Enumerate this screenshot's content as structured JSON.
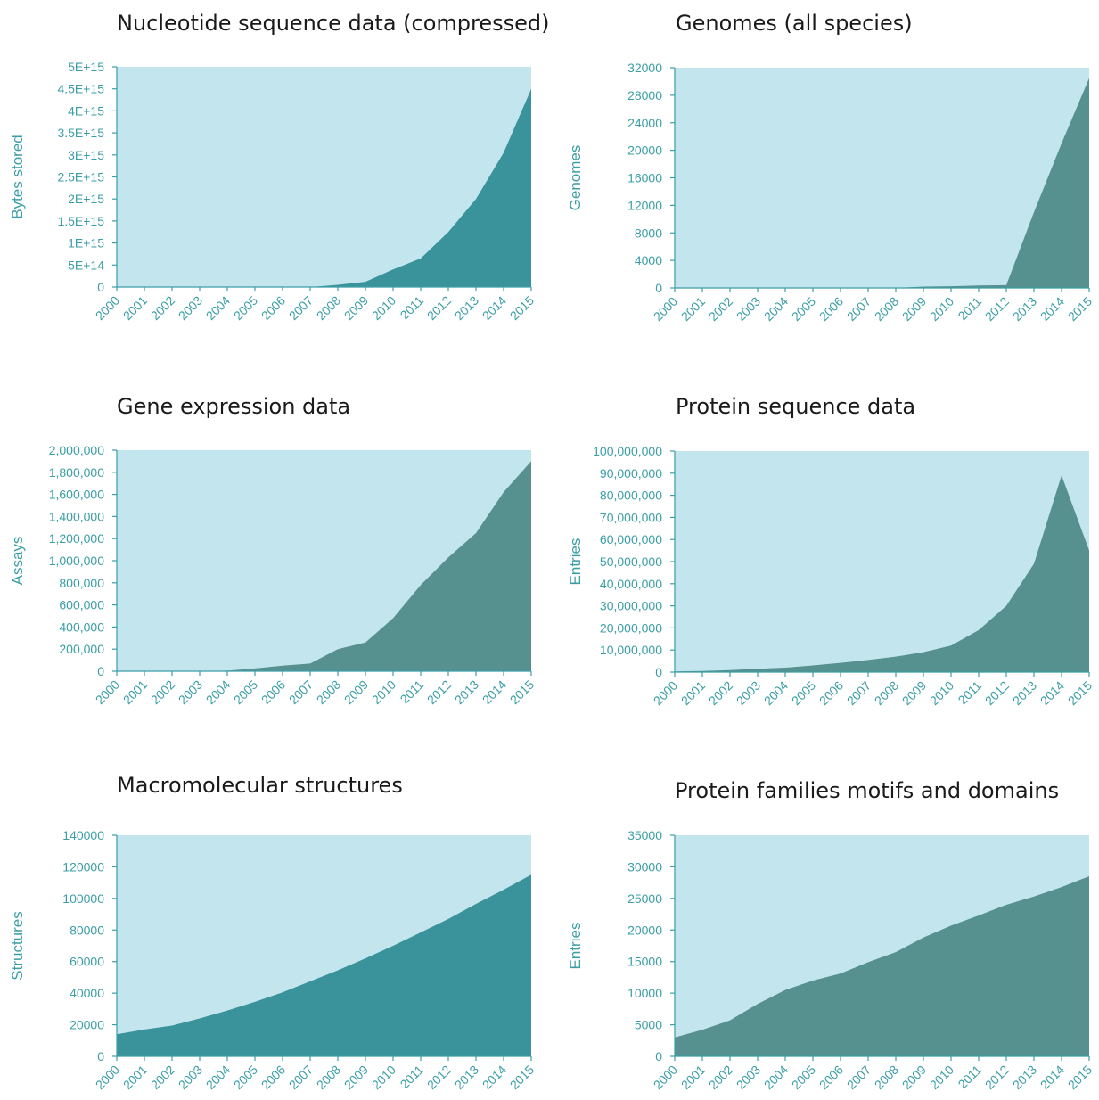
{
  "colors": {
    "background_fill": "#c3e5ee",
    "teal_area": "#3a929b",
    "slate_area": "#56908f",
    "axis_text": "#3b9ea6"
  },
  "chart_data": [
    {
      "id": "nucleotide",
      "type": "area",
      "title": "Nucleotide sequence data (compressed)",
      "xlabel": "",
      "ylabel": "Bytes stored",
      "fill_color": "#3a929b",
      "categories": [
        "2000",
        "2001",
        "2002",
        "2003",
        "2004",
        "2005",
        "2006",
        "2007",
        "2008",
        "2009",
        "2010",
        "2011",
        "2012",
        "2013",
        "2014",
        "2015"
      ],
      "values": [
        0,
        0,
        0,
        0,
        0,
        0,
        0,
        0,
        50000000000000.0,
        120000000000000.0,
        400000000000000.0,
        650000000000000.0,
        1250000000000000.0,
        2000000000000000.0,
        3050000000000000.0,
        4500000000000000.0
      ],
      "ylim": [
        0,
        5000000000000000.0
      ],
      "yticks": [
        "0",
        "5E+14",
        "1E+15",
        "1.5E+15",
        "2E+15",
        "2.5E+15",
        "3E+15",
        "3.5E+15",
        "4E+15",
        "4.5E+15",
        "5E+15"
      ]
    },
    {
      "id": "genomes",
      "type": "area",
      "title": "Genomes (all species)",
      "xlabel": "",
      "ylabel": "Genomes",
      "fill_color": "#56908f",
      "categories": [
        "2000",
        "2001",
        "2002",
        "2003",
        "2004",
        "2005",
        "2006",
        "2007",
        "2008",
        "2009",
        "2010",
        "2011",
        "2012",
        "2013",
        "2014",
        "2015"
      ],
      "values": [
        0,
        0,
        0,
        0,
        0,
        0,
        0,
        0,
        0,
        200,
        250,
        350,
        400,
        11000,
        21000,
        30500
      ],
      "ylim": [
        0,
        32000
      ],
      "yticks": [
        "0",
        "4000",
        "8000",
        "12000",
        "16000",
        "20000",
        "24000",
        "28000",
        "32000"
      ]
    },
    {
      "id": "gene-expression",
      "type": "area",
      "title": "Gene expression data",
      "xlabel": "",
      "ylabel": "Assays",
      "fill_color": "#56908f",
      "categories": [
        "2000",
        "2001",
        "2002",
        "2003",
        "2004",
        "2005",
        "2006",
        "2007",
        "2008",
        "2009",
        "2010",
        "2011",
        "2012",
        "2013",
        "2014",
        "2015"
      ],
      "values": [
        0,
        0,
        0,
        0,
        5000,
        25000,
        50000,
        70000,
        200000,
        260000,
        480000,
        780000,
        1030000,
        1250000,
        1620000,
        1900000
      ],
      "ylim": [
        0,
        2000000
      ],
      "yticks": [
        "0",
        "200,000",
        "400,000",
        "600,000",
        "800,000",
        "1,000,000",
        "1,200,000",
        "1,400,000",
        "1,600,000",
        "1,800,000",
        "2,000,000"
      ]
    },
    {
      "id": "protein-sequence",
      "type": "area",
      "title": "Protein sequence data",
      "xlabel": "",
      "ylabel": "Entries",
      "fill_color": "#56908f",
      "categories": [
        "2000",
        "2001",
        "2002",
        "2003",
        "2004",
        "2005",
        "2006",
        "2007",
        "2008",
        "2009",
        "2010",
        "2011",
        "2012",
        "2013",
        "2014",
        "2015"
      ],
      "values": [
        300000,
        500000,
        900000,
        1500000,
        2000000,
        3000000,
        4200000,
        5500000,
        7000000,
        9000000,
        12000000,
        19000000,
        30000000,
        49000000,
        89000000,
        55000000
      ],
      "ylim": [
        0,
        100000000
      ],
      "yticks": [
        "0",
        "10,000,000",
        "20,000,000",
        "30,000,000",
        "40,000,000",
        "50,000,000",
        "60,000,000",
        "70,000,000",
        "80,000,000",
        "90,000,000",
        "100,000,000"
      ]
    },
    {
      "id": "macromolecular",
      "type": "area",
      "title": "Macromolecular structures",
      "xlabel": "",
      "ylabel": "Structures",
      "fill_color": "#3a929b",
      "categories": [
        "2000",
        "2001",
        "2002",
        "2003",
        "2004",
        "2005",
        "2006",
        "2007",
        "2008",
        "2009",
        "2010",
        "2011",
        "2012",
        "2013",
        "2014",
        "2015"
      ],
      "values": [
        14000,
        17000,
        19500,
        24000,
        29000,
        34500,
        40500,
        47500,
        54500,
        62000,
        70000,
        78500,
        87000,
        96500,
        105500,
        115000
      ],
      "ylim": [
        0,
        140000
      ],
      "yticks": [
        "0",
        "20000",
        "40000",
        "60000",
        "80000",
        "100000",
        "120000",
        "140000"
      ]
    },
    {
      "id": "protein-families",
      "type": "area",
      "title": "Protein families motifs and domains",
      "xlabel": "",
      "ylabel": "Entries",
      "fill_color": "#56908f",
      "categories": [
        "2000",
        "2001",
        "2002",
        "2003",
        "2004",
        "2005",
        "2006",
        "2007",
        "2008",
        "2009",
        "2010",
        "2011",
        "2012",
        "2013",
        "2014",
        "2015"
      ],
      "values": [
        3000,
        4200,
        5700,
        8300,
        10500,
        12000,
        13100,
        14900,
        16500,
        18800,
        20700,
        22300,
        24000,
        25300,
        26800,
        28500
      ],
      "ylim": [
        0,
        35000
      ],
      "yticks": [
        "0",
        "5000",
        "10000",
        "15000",
        "20000",
        "25000",
        "30000",
        "35000"
      ]
    }
  ]
}
